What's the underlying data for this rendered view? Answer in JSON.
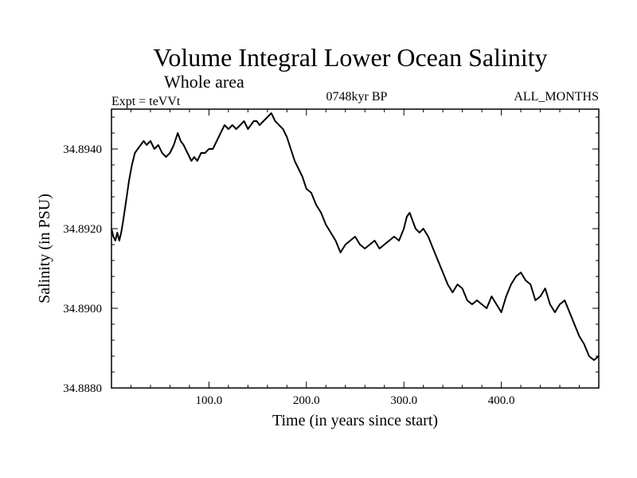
{
  "chart_data": {
    "type": "line",
    "title": "Volume Integral Lower Ocean Salinity",
    "subtitle": "Whole area",
    "annotations": {
      "experiment": "Expt = teVVt",
      "period": "0748kyr BP",
      "months": "ALL_MONTHS"
    },
    "xlabel": "Time (in years since start)",
    "ylabel": "Salinity (in PSU)",
    "xlim": [
      0,
      500
    ],
    "ylim": [
      34.888,
      34.895
    ],
    "xticks": [
      100,
      200,
      300,
      400
    ],
    "xtick_labels": [
      "100.0",
      "200.0",
      "300.0",
      "400.0"
    ],
    "yticks": [
      34.888,
      34.89,
      34.892,
      34.894
    ],
    "ytick_labels": [
      "34.8880",
      "34.8900",
      "34.8920",
      "34.8940"
    ],
    "grid": false,
    "series": [
      {
        "x": [
          0,
          2,
          4,
          6,
          8,
          10,
          12,
          15,
          18,
          21,
          24,
          27,
          30,
          33,
          36,
          40,
          44,
          48,
          52,
          56,
          60,
          64,
          68,
          71,
          74,
          78,
          82,
          85,
          88,
          92,
          96,
          100,
          104,
          108,
          112,
          116,
          120,
          124,
          128,
          132,
          136,
          140,
          143,
          146,
          149,
          152,
          156,
          160,
          164,
          168,
          172,
          176,
          180,
          184,
          188,
          192,
          196,
          200,
          205,
          210,
          215,
          220,
          225,
          230,
          235,
          240,
          245,
          250,
          255,
          260,
          265,
          270,
          275,
          280,
          285,
          290,
          295,
          300,
          303,
          306,
          309,
          312,
          316,
          320,
          325,
          330,
          335,
          340,
          345,
          350,
          355,
          360,
          365,
          370,
          375,
          380,
          385,
          390,
          395,
          400,
          405,
          410,
          415,
          420,
          425,
          430,
          435,
          440,
          445,
          450,
          455,
          460,
          465,
          470,
          475,
          480,
          485,
          490,
          495,
          500
        ],
        "y": [
          34.892,
          34.8918,
          34.8917,
          34.8919,
          34.8917,
          34.8919,
          34.8922,
          34.8927,
          34.8932,
          34.8936,
          34.8939,
          34.894,
          34.8941,
          34.8942,
          34.8941,
          34.8942,
          34.894,
          34.8941,
          34.8939,
          34.8938,
          34.8939,
          34.8941,
          34.8944,
          34.8942,
          34.8941,
          34.8939,
          34.8937,
          34.8938,
          34.8937,
          34.8939,
          34.8939,
          34.894,
          34.894,
          34.8942,
          34.8944,
          34.8946,
          34.8945,
          34.8946,
          34.8945,
          34.8946,
          34.8947,
          34.8945,
          34.8946,
          34.8947,
          34.8947,
          34.8946,
          34.8947,
          34.8948,
          34.8949,
          34.8947,
          34.8946,
          34.8945,
          34.8943,
          34.894,
          34.8937,
          34.8935,
          34.8933,
          34.893,
          34.8929,
          34.8926,
          34.8924,
          34.8921,
          34.8919,
          34.8917,
          34.8914,
          34.8916,
          34.8917,
          34.8918,
          34.8916,
          34.8915,
          34.8916,
          34.8917,
          34.8915,
          34.8916,
          34.8917,
          34.8918,
          34.8917,
          34.892,
          34.8923,
          34.8924,
          34.8922,
          34.892,
          34.8919,
          34.892,
          34.8918,
          34.8915,
          34.8912,
          34.8909,
          34.8906,
          34.8904,
          34.8906,
          34.8905,
          34.8902,
          34.8901,
          34.8902,
          34.8901,
          34.89,
          34.8903,
          34.8901,
          34.8899,
          34.8903,
          34.8906,
          34.8908,
          34.8909,
          34.8907,
          34.8906,
          34.8902,
          34.8903,
          34.8905,
          34.8901,
          34.8899,
          34.8901,
          34.8902,
          34.8899,
          34.8896,
          34.8893,
          34.8891,
          34.8888,
          34.8887,
          34.8888
        ]
      }
    ]
  }
}
